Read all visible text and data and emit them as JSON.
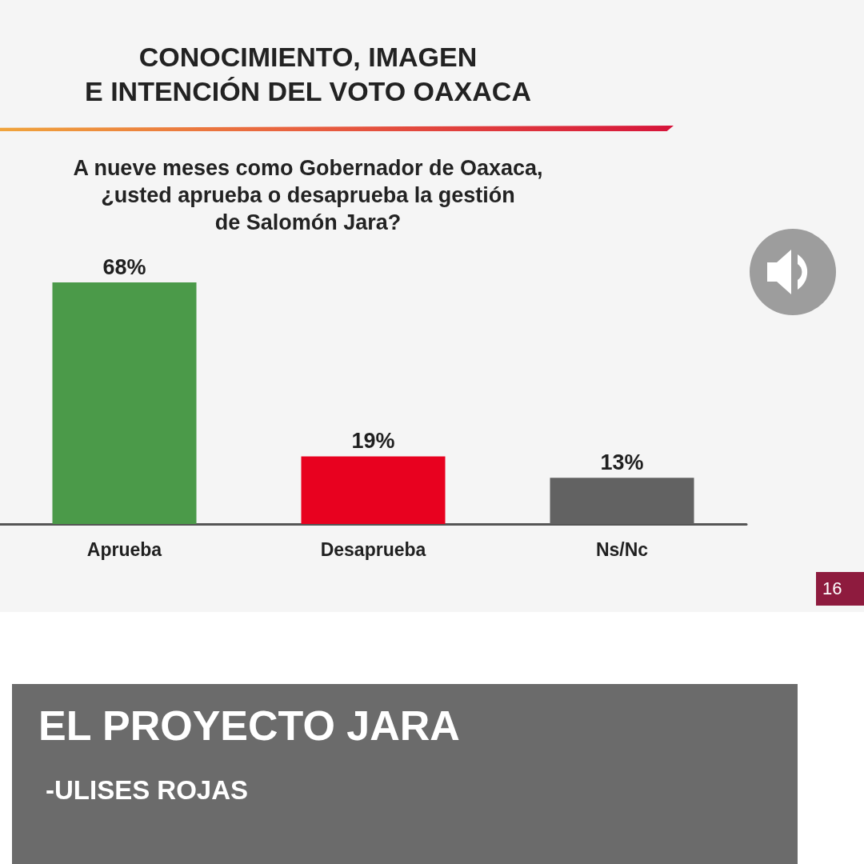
{
  "chart_data": {
    "type": "bar",
    "title": "CONOCIMIENTO, IMAGEN\nE INTENCIÓN DEL VOTO OAXACA",
    "subtitle": "A nueve meses como Gobernador de Oaxaca,\n¿usted aprueba o desaprueba la gestión\nde Salomón Jara?",
    "categories": [
      "Aprueba",
      "Desaprueba",
      "Ns/Nc"
    ],
    "values": [
      68,
      19,
      13
    ],
    "colors": [
      "#4b9a49",
      "#e8011f",
      "#626262"
    ],
    "value_labels": [
      "68%",
      "19%",
      "13%"
    ],
    "tick_labels": "x",
    "annotations": [
      "16",
      "EL PROYECTO JARA",
      "-ULISES ROJAS"
    ]
  }
}
